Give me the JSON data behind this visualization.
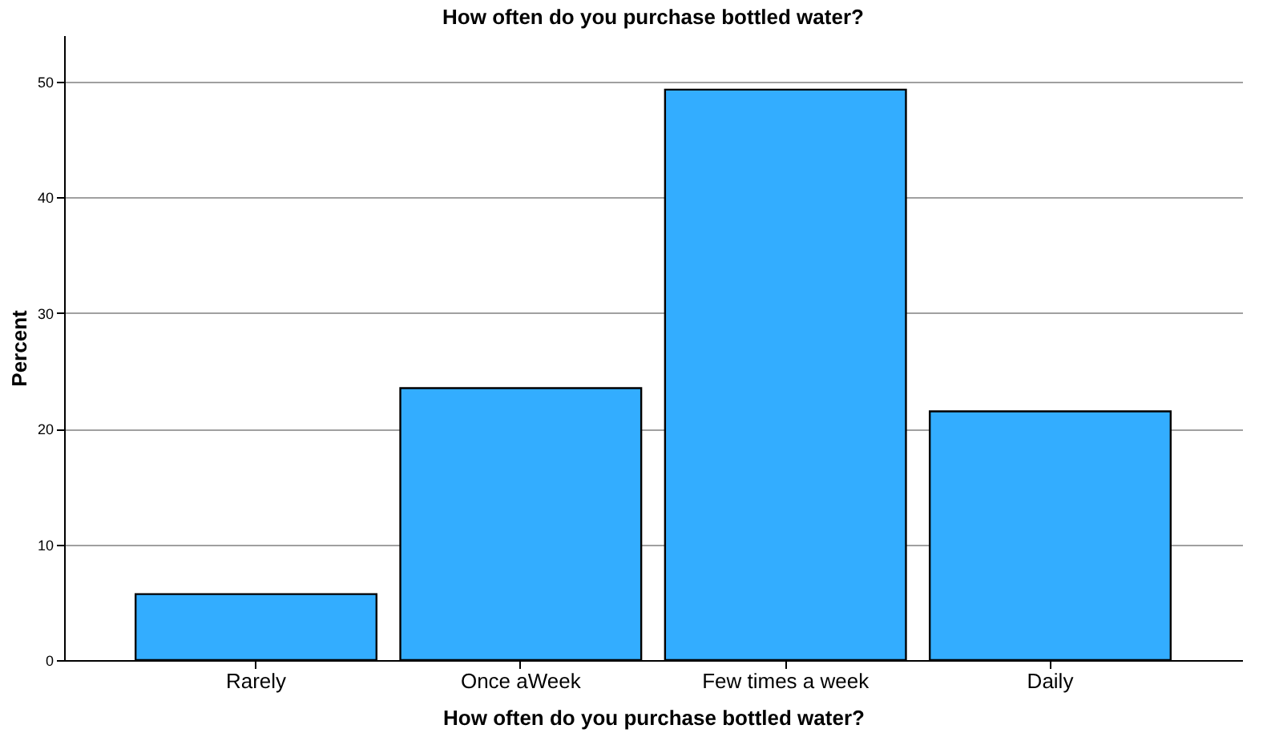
{
  "chart_data": {
    "type": "bar",
    "title": "How often do you purchase bottled water?",
    "xlabel": "How often do you purchase bottled water?",
    "ylabel": "Percent",
    "categories": [
      "Rarely",
      "Once aWeek",
      "Few times a week",
      "Daily"
    ],
    "values": [
      5.7,
      23.5,
      49.3,
      21.5
    ],
    "color": "#33adff",
    "ylim": [
      0,
      54
    ],
    "yticks": [
      0,
      10,
      20,
      30,
      40,
      50
    ],
    "grid": "y"
  }
}
